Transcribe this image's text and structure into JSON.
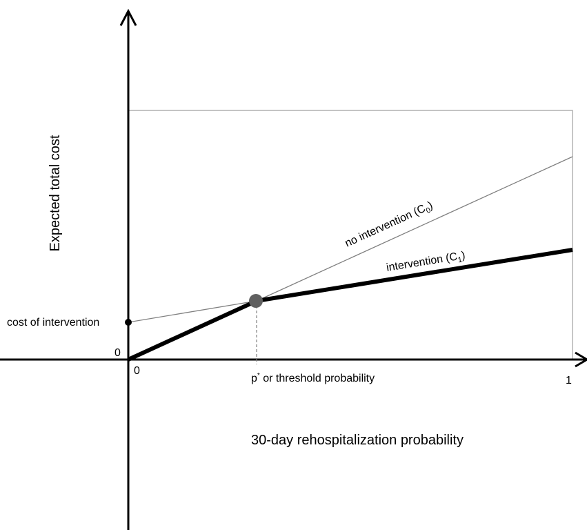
{
  "diagram": {
    "y_axis_label": "Expected total cost",
    "x_axis_label": "30-day rehospitalization probability",
    "origin_y_label": "0",
    "origin_x_label": "0",
    "x_max_label": "1",
    "intercept_label": "cost of intervention",
    "threshold_label_main": "p",
    "threshold_label_sup": "*",
    "threshold_label_rest": " or threshold probability",
    "line_c0": {
      "text": "no intervention (C",
      "subscript": "0",
      "close": ")"
    },
    "line_c1": {
      "text": "intervention (C",
      "subscript": "1",
      "close": ")"
    }
  },
  "colors": {
    "axis": "#000000",
    "thin_line": "#808080",
    "box": "#a0a0a0",
    "threshold_point": "#606060"
  }
}
